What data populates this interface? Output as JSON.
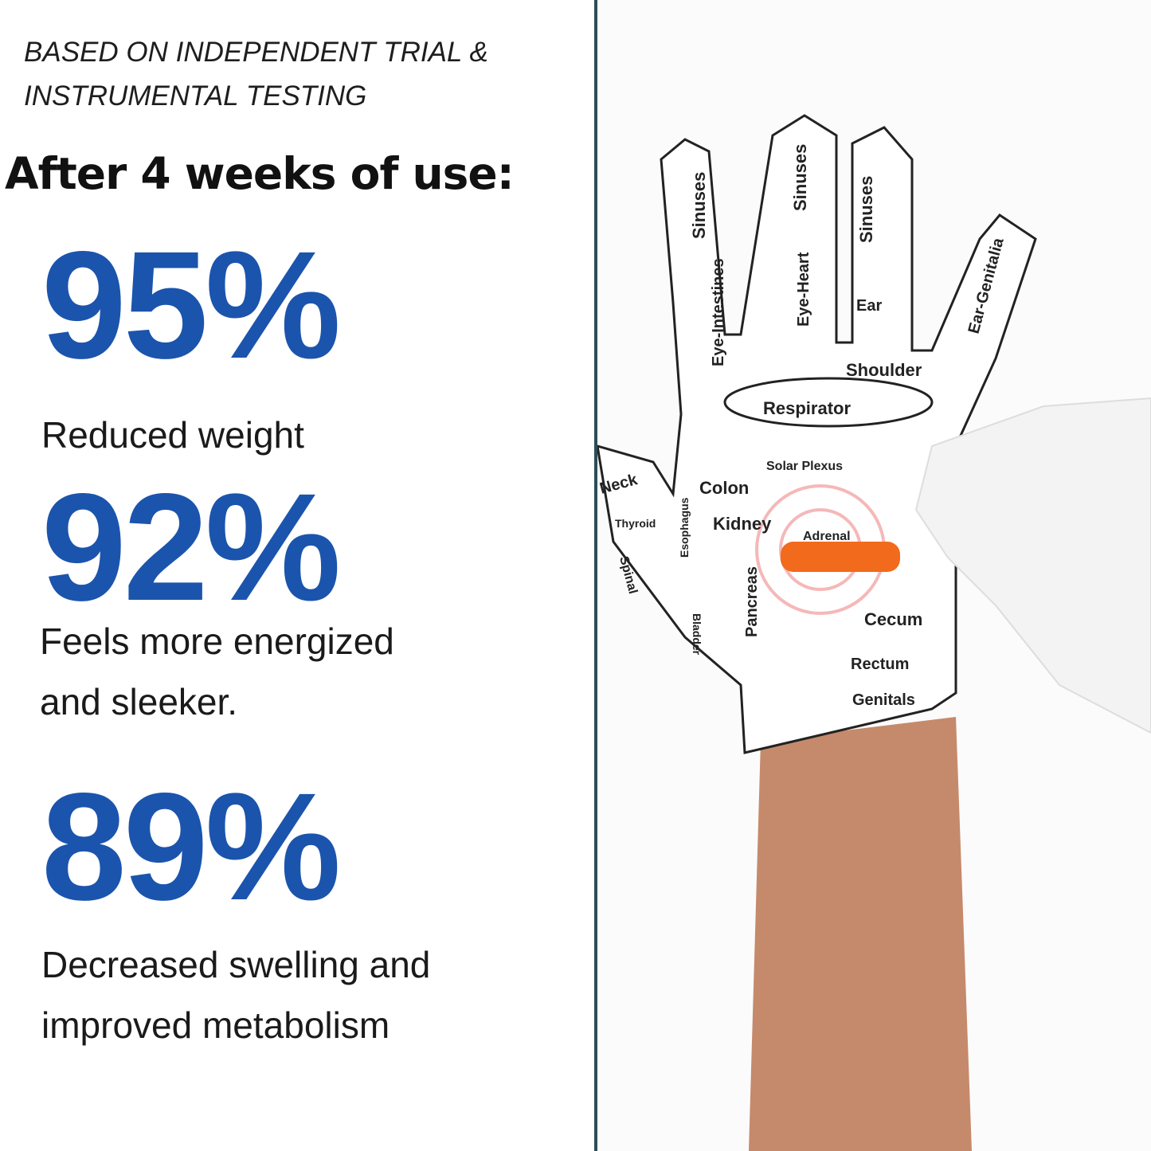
{
  "note": {
    "line1": "BASED ON INDEPENDENT TRIAL &",
    "line2": "INSTRUMENTAL TESTING"
  },
  "heading": "After 4 weeks of use:",
  "stats": [
    {
      "value": "95%",
      "lines": [
        "Reduced weight"
      ]
    },
    {
      "value": "92%",
      "lines": [
        "Feels more energized",
        "and sleeker."
      ]
    },
    {
      "value": "89%",
      "lines": [
        "Decreased swelling and",
        "improved metabolism"
      ]
    }
  ],
  "colors": {
    "accent": "#1b54ad",
    "divider": "#2b4d58"
  },
  "glove_labels": [
    "Sinuses",
    "Sinuses",
    "Sinuses",
    "Eye-Intestines",
    "Eye-Heart",
    "Ear",
    "Ear-Genitalia",
    "Shoulder",
    "Respirator",
    "Solar Plexus",
    "Colon",
    "Kidney",
    "Adrenal",
    "Neck",
    "Thyroid",
    "Esophagus",
    "Spinal",
    "Pancreas",
    "Cecum",
    "Rectum",
    "Genitals",
    "Bladder"
  ]
}
